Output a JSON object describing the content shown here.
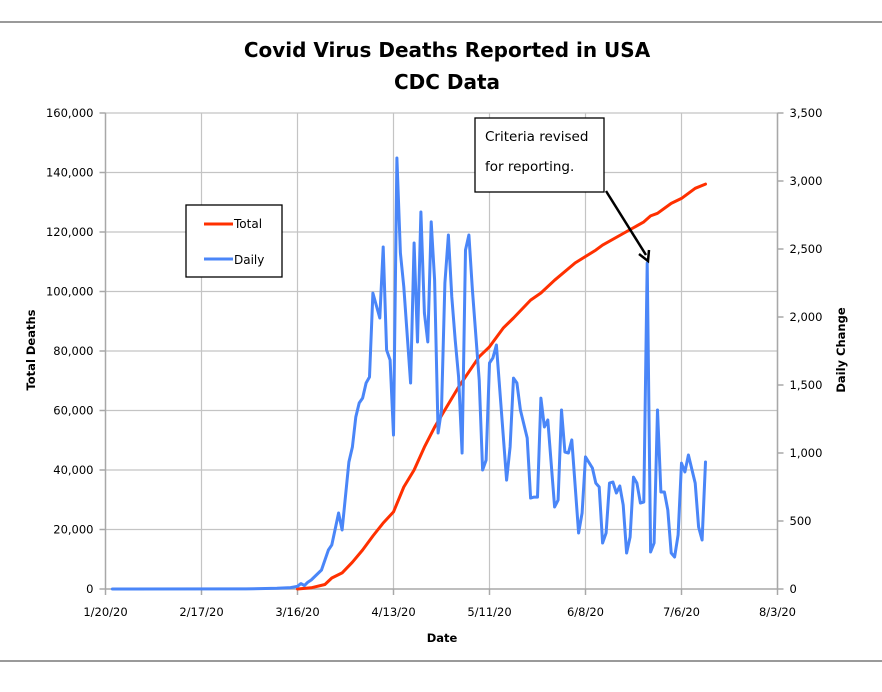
{
  "chart_data": {
    "type": "line",
    "title": [
      "Covid Virus Deaths Reported in USA",
      "CDC Data"
    ],
    "xlabel": "Date",
    "ylabel_left": "Total Deaths",
    "ylabel_right": "Daily Change",
    "x_ticks": [
      "1/20/20",
      "2/17/20",
      "3/16/20",
      "4/13/20",
      "5/11/20",
      "6/8/20",
      "7/6/20",
      "8/3/20"
    ],
    "xlim": [
      "1/20/20",
      "8/3/20"
    ],
    "ylim_left": [
      0,
      160000
    ],
    "y_ticks_left": [
      "0",
      "20,000",
      "40,000",
      "60,000",
      "80,000",
      "100,000",
      "120,000",
      "140,000",
      "160,000"
    ],
    "ylim_right": [
      0,
      3500
    ],
    "y_ticks_right": [
      "0",
      "500",
      "1,000",
      "1,500",
      "2,000",
      "2,500",
      "3,000",
      "3,500"
    ],
    "grid": true,
    "legend_placement": "upper-left inside plot",
    "annotation": {
      "lines": [
        "Criteria revised",
        "for reporting."
      ],
      "points_to": [
        "6/26/20",
        2397
      ]
    },
    "series": [
      {
        "name": "Total",
        "axis": "left",
        "color": "#ff3000",
        "points": [
          [
            "3/16/20",
            0
          ],
          [
            "3/20/20",
            400
          ],
          [
            "3/24/20",
            1500
          ],
          [
            "3/26/20",
            3700
          ],
          [
            "3/29/20",
            5400
          ],
          [
            "4/1/20",
            9000
          ],
          [
            "4/4/20",
            13100
          ],
          [
            "4/7/20",
            17800
          ],
          [
            "4/10/20",
            22200
          ],
          [
            "4/13/20",
            25900
          ],
          [
            "4/16/20",
            34300
          ],
          [
            "4/19/20",
            40000
          ],
          [
            "4/22/20",
            47700
          ],
          [
            "4/25/20",
            54400
          ],
          [
            "4/28/20",
            60200
          ],
          [
            "5/2/20",
            67900
          ],
          [
            "5/5/20",
            73000
          ],
          [
            "5/8/20",
            78100
          ],
          [
            "5/11/20",
            81400
          ],
          [
            "5/15/20",
            87700
          ],
          [
            "5/18/20",
            91100
          ],
          [
            "5/23/20",
            97100
          ],
          [
            "5/26/20",
            99500
          ],
          [
            "5/30/20",
            103800
          ],
          [
            "6/5/20",
            109600
          ],
          [
            "6/11/20",
            113900
          ],
          [
            "6/13/20",
            115600
          ],
          [
            "6/19/20",
            119500
          ],
          [
            "6/25/20",
            123400
          ],
          [
            "6/27/20",
            125400
          ],
          [
            "6/29/20",
            126300
          ],
          [
            "7/3/20",
            129600
          ],
          [
            "7/6/20",
            131300
          ],
          [
            "7/10/20",
            134700
          ],
          [
            "7/13/20",
            136100
          ]
        ]
      },
      {
        "name": "Daily",
        "axis": "right",
        "color": "#4a86f8",
        "points": [
          [
            "1/22/20",
            0
          ],
          [
            "3/1/20",
            1
          ],
          [
            "3/10/20",
            5
          ],
          [
            "3/14/20",
            10
          ],
          [
            "3/16/20",
            20
          ],
          [
            "3/17/20",
            40
          ],
          [
            "3/18/20",
            25
          ],
          [
            "3/19/20",
            50
          ],
          [
            "3/20/20",
            66
          ],
          [
            "3/23/20",
            140
          ],
          [
            "3/25/20",
            287
          ],
          [
            "3/26/20",
            324
          ],
          [
            "3/28/20",
            559
          ],
          [
            "3/29/20",
            434
          ],
          [
            "3/31/20",
            934
          ],
          [
            "4/1/20",
            1044
          ],
          [
            "4/2/20",
            1265
          ],
          [
            "4/3/20",
            1368
          ],
          [
            "4/4/20",
            1404
          ],
          [
            "4/5/20",
            1515
          ],
          [
            "4/6/20",
            1559
          ],
          [
            "4/7/20",
            2176
          ],
          [
            "4/9/20",
            1993
          ],
          [
            "4/10/20",
            2515
          ],
          [
            "4/11/20",
            1757
          ],
          [
            "4/12/20",
            1684
          ],
          [
            "4/13/20",
            1132
          ],
          [
            "4/14/20",
            3169
          ],
          [
            "4/15/20",
            2471
          ],
          [
            "4/16/20",
            2221
          ],
          [
            "4/18/20",
            1515
          ],
          [
            "4/19/20",
            2544
          ],
          [
            "4/20/20",
            1816
          ],
          [
            "4/21/20",
            2772
          ],
          [
            "4/22/20",
            2029
          ],
          [
            "4/23/20",
            1816
          ],
          [
            "4/24/20",
            2699
          ],
          [
            "4/25/20",
            2272
          ],
          [
            "4/26/20",
            1147
          ],
          [
            "4/27/20",
            1316
          ],
          [
            "4/28/20",
            2250
          ],
          [
            "4/29/20",
            2603
          ],
          [
            "4/30/20",
            2147
          ],
          [
            "5/1/20",
            1831
          ],
          [
            "5/2/20",
            1559
          ],
          [
            "5/3/20",
            1000
          ],
          [
            "5/4/20",
            2493
          ],
          [
            "5/5/20",
            2603
          ],
          [
            "5/6/20",
            2199
          ],
          [
            "5/8/20",
            1537
          ],
          [
            "5/9/20",
            875
          ],
          [
            "5/10/20",
            948
          ],
          [
            "5/11/20",
            1662
          ],
          [
            "5/12/20",
            1699
          ],
          [
            "5/13/20",
            1794
          ],
          [
            "5/16/20",
            801
          ],
          [
            "5/17/20",
            1044
          ],
          [
            "5/18/20",
            1551
          ],
          [
            "5/19/20",
            1515
          ],
          [
            "5/20/20",
            1316
          ],
          [
            "5/22/20",
            1110
          ],
          [
            "5/23/20",
            669
          ],
          [
            "5/24/20",
            676
          ],
          [
            "5/25/20",
            676
          ],
          [
            "5/26/20",
            1404
          ],
          [
            "5/27/20",
            1191
          ],
          [
            "5/28/20",
            1243
          ],
          [
            "5/30/20",
            603
          ],
          [
            "5/31/20",
            654
          ],
          [
            "6/1/20",
            1316
          ],
          [
            "6/2/20",
            1007
          ],
          [
            "6/3/20",
            1000
          ],
          [
            "6/4/20",
            1096
          ],
          [
            "6/6/20",
            412
          ],
          [
            "6/7/20",
            559
          ],
          [
            "6/8/20",
            971
          ],
          [
            "6/10/20",
            890
          ],
          [
            "6/11/20",
            779
          ],
          [
            "6/12/20",
            750
          ],
          [
            "6/13/20",
            338
          ],
          [
            "6/14/20",
            412
          ],
          [
            "6/15/20",
            779
          ],
          [
            "6/16/20",
            787
          ],
          [
            "6/17/20",
            706
          ],
          [
            "6/18/20",
            757
          ],
          [
            "6/19/20",
            618
          ],
          [
            "6/20/20",
            265
          ],
          [
            "6/21/20",
            382
          ],
          [
            "6/22/20",
            823
          ],
          [
            "6/23/20",
            779
          ],
          [
            "6/24/20",
            632
          ],
          [
            "6/25/20",
            640
          ],
          [
            "6/26/20",
            2397
          ],
          [
            "6/27/20",
            272
          ],
          [
            "6/28/20",
            338
          ],
          [
            "6/29/20",
            1316
          ],
          [
            "6/30/20",
            713
          ],
          [
            "7/1/20",
            713
          ],
          [
            "7/2/20",
            581
          ],
          [
            "7/3/20",
            265
          ],
          [
            "7/4/20",
            235
          ],
          [
            "7/5/20",
            397
          ],
          [
            "7/6/20",
            926
          ],
          [
            "7/7/20",
            860
          ],
          [
            "7/8/20",
            985
          ],
          [
            "7/10/20",
            779
          ],
          [
            "7/11/20",
            456
          ],
          [
            "7/12/20",
            360
          ],
          [
            "7/13/20",
            934
          ]
        ]
      }
    ]
  }
}
